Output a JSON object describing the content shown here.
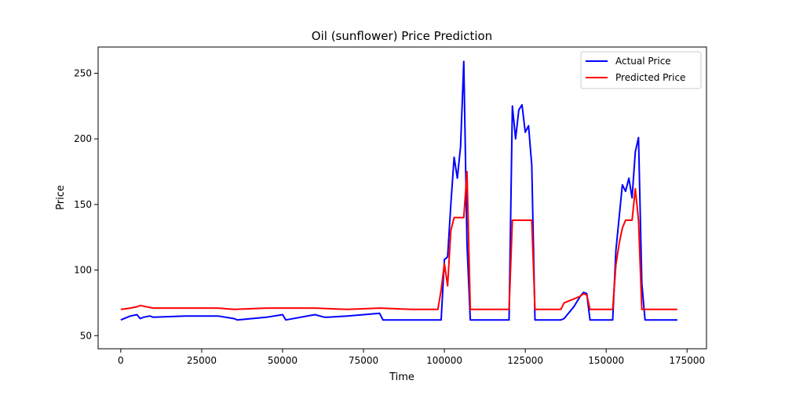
{
  "chart_data": {
    "type": "line",
    "title": "Oil (sunflower) Price Prediction",
    "xlabel": "Time",
    "ylabel": "Price",
    "xlim": [
      -7000,
      181000
    ],
    "ylim": [
      40,
      270
    ],
    "xticks": [
      0,
      25000,
      50000,
      75000,
      100000,
      125000,
      150000,
      175000
    ],
    "yticks": [
      50,
      100,
      150,
      200,
      250
    ],
    "grid": false,
    "legend_position": "top-right",
    "series": [
      {
        "name": "Actual Price",
        "color": "#0000ff",
        "x": [
          0,
          2000,
          3000,
          5000,
          6000,
          7000,
          9000,
          10000,
          20000,
          30000,
          35000,
          36000,
          45000,
          50000,
          51000,
          60000,
          63000,
          64000,
          70000,
          75000,
          80000,
          81000,
          99000,
          100000,
          101000,
          102000,
          103000,
          104000,
          105000,
          106000,
          107000,
          108000,
          109000,
          120000,
          121000,
          122000,
          123000,
          124000,
          125000,
          126000,
          127000,
          128000,
          136000,
          137000,
          140000,
          142000,
          143000,
          144000,
          145000,
          152000,
          153000,
          154000,
          155000,
          156000,
          157000,
          158000,
          159000,
          160000,
          161000,
          162000,
          172000
        ],
        "y": [
          62,
          64,
          65,
          66,
          63,
          64,
          65,
          64,
          65,
          65,
          63,
          62,
          64,
          66,
          62,
          66,
          64,
          64,
          65,
          66,
          67,
          62,
          62,
          108,
          110,
          150,
          186,
          170,
          194,
          259,
          120,
          62,
          62,
          62,
          225,
          200,
          222,
          226,
          205,
          210,
          180,
          62,
          62,
          63,
          72,
          80,
          83,
          82,
          62,
          62,
          115,
          140,
          165,
          160,
          170,
          155,
          190,
          201,
          90,
          62,
          62
        ]
      },
      {
        "name": "Predicted Price",
        "color": "#ff0000",
        "x": [
          0,
          3000,
          5000,
          6000,
          10000,
          20000,
          30000,
          35000,
          45000,
          50000,
          60000,
          70000,
          80000,
          90000,
          98000,
          99000,
          100000,
          101000,
          102000,
          103000,
          104000,
          105000,
          106000,
          107000,
          108000,
          120000,
          121000,
          122000,
          123000,
          124000,
          125000,
          126000,
          127000,
          128000,
          136000,
          137000,
          140000,
          142000,
          143000,
          144000,
          145000,
          152000,
          153000,
          154000,
          155000,
          156000,
          157000,
          158000,
          159000,
          160000,
          161000,
          162000,
          172000
        ],
        "y": [
          70,
          71,
          72,
          73,
          71,
          71,
          71,
          70,
          71,
          71,
          71,
          70,
          71,
          70,
          70,
          85,
          105,
          88,
          130,
          140,
          140,
          140,
          140,
          175,
          70,
          70,
          138,
          138,
          138,
          138,
          138,
          138,
          138,
          70,
          70,
          75,
          78,
          80,
          82,
          81,
          70,
          70,
          104,
          120,
          132,
          138,
          138,
          138,
          162,
          138,
          70,
          70,
          70
        ]
      }
    ]
  }
}
